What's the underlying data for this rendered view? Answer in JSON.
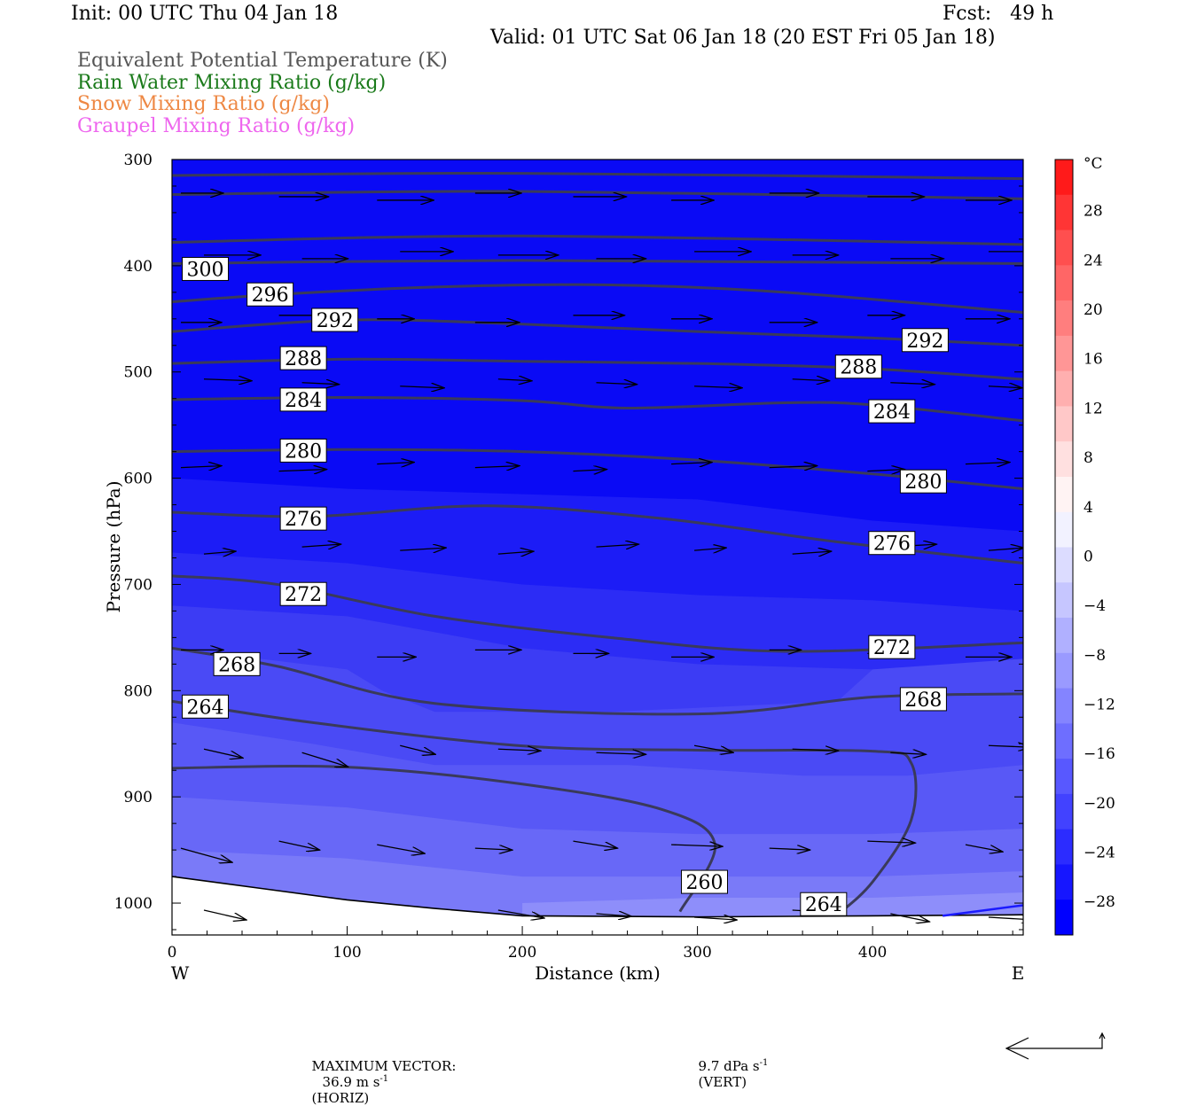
{
  "header": {
    "init": "Init: 00 UTC Thu 04 Jan 18",
    "fcst": "Fcst:   49 h",
    "valid": "Valid: 01 UTC Sat 06 Jan 18 (20 EST Fri 05 Jan 18)",
    "fields": [
      {
        "label": "Equivalent Potential Temperature (K)",
        "color": "#555555"
      },
      {
        "label": "Rain Water Mixing Ratio (g/kg)",
        "color": "#1a7a1a"
      },
      {
        "label": "Snow Mixing Ratio (g/kg)",
        "color": "#ee8844"
      },
      {
        "label": "Graupel Mixing Ratio (g/kg)",
        "color": "#ee66ee"
      }
    ]
  },
  "footer": {
    "max_vector_label": "MAXIMUM VECTOR:",
    "horiz_value": "36.9 m s",
    "horiz_exp": "-1",
    "horiz_tag": "(HORIZ)",
    "vert_value": "9.7 dPa s",
    "vert_exp": "-1",
    "vert_tag": "(VERT)"
  },
  "chart_data": {
    "type": "cross-section",
    "xlabel": "Distance (km)",
    "ylabel": "Pressure (hPa)",
    "x_ticks": [
      "0",
      "100",
      "200",
      "300",
      "400"
    ],
    "x_tick_values": [
      0,
      100,
      200,
      300,
      400
    ],
    "xlim": [
      0,
      486
    ],
    "y_ticks": [
      "300",
      "400",
      "500",
      "600",
      "700",
      "800",
      "900",
      "1000"
    ],
    "y_tick_values": [
      300,
      400,
      500,
      600,
      700,
      800,
      900,
      1000
    ],
    "ylim": [
      300,
      1030
    ],
    "left_end": "W",
    "right_end": "E",
    "colorbar": {
      "unit": "°C",
      "labels": [
        "28",
        "24",
        "20",
        "16",
        "12",
        "8",
        "4",
        "0",
        "−4",
        "−8",
        "−12",
        "−16",
        "−20",
        "−24",
        "−28"
      ],
      "values": [
        28,
        24,
        20,
        16,
        12,
        8,
        4,
        0,
        -4,
        -8,
        -12,
        -16,
        -20,
        -24,
        -28
      ],
      "colors_top_to_bottom": [
        "#ff1a1a",
        "#ff3535",
        "#ff4f4f",
        "#ff6666",
        "#ff7e7e",
        "#ff9696",
        "#ffafaf",
        "#ffc8c8",
        "#ffe0e0",
        "#fff3f3",
        "#f2f2ff",
        "#dcdcff",
        "#c6c6ff",
        "#b0b0ff",
        "#9a9aff",
        "#8484ff",
        "#6e6eff",
        "#5858ff",
        "#4242ff",
        "#2c2cff",
        "#1616ff",
        "#0000ff"
      ]
    },
    "theta_e_contours": [
      {
        "level": 300,
        "label": "300",
        "points": [
          [
            0,
            398
          ],
          [
            100,
            396
          ],
          [
            200,
            395
          ],
          [
            300,
            396
          ],
          [
            400,
            397
          ],
          [
            486,
            398
          ]
        ],
        "label_at": [
          [
            19,
            403
          ]
        ]
      },
      {
        "level": 296,
        "label": "296",
        "points": [
          [
            0,
            434
          ],
          [
            60,
            427
          ],
          [
            150,
            420
          ],
          [
            250,
            418
          ],
          [
            350,
            425
          ],
          [
            486,
            444
          ]
        ],
        "label_at": [
          [
            56,
            427
          ]
        ]
      },
      {
        "level": 292,
        "label": "292",
        "points": [
          [
            0,
            462
          ],
          [
            100,
            451
          ],
          [
            200,
            455
          ],
          [
            300,
            462
          ],
          [
            400,
            468
          ],
          [
            486,
            475
          ]
        ],
        "label_at": [
          [
            93,
            451
          ]
        ],
        "label_extra": [
          [
            430,
            470
          ]
        ]
      },
      {
        "level": 288,
        "label": "288",
        "points": [
          [
            0,
            492
          ],
          [
            100,
            488
          ],
          [
            200,
            490
          ],
          [
            300,
            492
          ],
          [
            400,
            497
          ],
          [
            486,
            507
          ]
        ],
        "label_at": [
          [
            75,
            487
          ],
          [
            392,
            495
          ]
        ]
      },
      {
        "level": 284,
        "label": "284",
        "points": [
          [
            0,
            526
          ],
          [
            100,
            524
          ],
          [
            200,
            527
          ],
          [
            260,
            534
          ],
          [
            350,
            529
          ],
          [
            400,
            531
          ],
          [
            486,
            546
          ]
        ],
        "label_at": [
          [
            75,
            526
          ],
          [
            411,
            537
          ]
        ]
      },
      {
        "level": 280,
        "label": "280",
        "points": [
          [
            0,
            575
          ],
          [
            100,
            573
          ],
          [
            200,
            575
          ],
          [
            300,
            583
          ],
          [
            400,
            596
          ],
          [
            486,
            610
          ]
        ],
        "label_at": [
          [
            75,
            574
          ],
          [
            429,
            603
          ]
        ]
      },
      {
        "level": 276,
        "label": "276",
        "points": [
          [
            0,
            632
          ],
          [
            80,
            636
          ],
          [
            180,
            626
          ],
          [
            280,
            638
          ],
          [
            380,
            660
          ],
          [
            486,
            680
          ]
        ],
        "label_at": [
          [
            75,
            638
          ],
          [
            411,
            661
          ]
        ]
      },
      {
        "level": 272,
        "label": "272",
        "points": [
          [
            0,
            692
          ],
          [
            60,
            700
          ],
          [
            150,
            730
          ],
          [
            250,
            750
          ],
          [
            350,
            763
          ],
          [
            486,
            755
          ]
        ],
        "label_at": [
          [
            75,
            709
          ]
        ],
        "label_extra": [
          [
            411,
            759
          ]
        ]
      },
      {
        "level": 268,
        "label": "268",
        "points": [
          [
            0,
            760
          ],
          [
            60,
            777
          ],
          [
            150,
            812
          ],
          [
            300,
            822
          ],
          [
            400,
            806
          ],
          [
            486,
            803
          ]
        ],
        "label_at": [
          [
            37,
            775
          ],
          [
            429,
            808
          ]
        ]
      },
      {
        "level": 264,
        "label": "264",
        "points": [
          [
            0,
            810
          ],
          [
            80,
            830
          ],
          [
            200,
            852
          ],
          [
            300,
            856
          ],
          [
            400,
            857
          ],
          [
            422,
            868
          ],
          [
            422,
            922
          ],
          [
            400,
            980
          ],
          [
            380,
            1011
          ]
        ],
        "label_at": [
          [
            19,
            815
          ],
          [
            372,
            1001
          ]
        ]
      },
      {
        "level": 260,
        "label": "260",
        "points": [
          [
            0,
            873
          ],
          [
            100,
            872
          ],
          [
            200,
            888
          ],
          [
            280,
            912
          ],
          [
            310,
            945
          ],
          [
            290,
            1008
          ]
        ],
        "label_at": [
          [
            304,
            980
          ]
        ]
      }
    ],
    "wind_vectors_note": "horizontal/vertical circulation vectors, predominantly west-to-east",
    "surface_pressure": [
      [
        0,
        975
      ],
      [
        50,
        986
      ],
      [
        100,
        997
      ],
      [
        150,
        1005
      ],
      [
        200,
        1012
      ],
      [
        300,
        1013
      ],
      [
        400,
        1012
      ],
      [
        486,
        1011
      ]
    ]
  }
}
